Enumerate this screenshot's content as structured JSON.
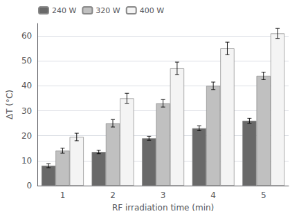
{
  "chart_data": {
    "type": "bar",
    "categories": [
      1,
      2,
      3,
      4,
      5
    ],
    "series": [
      {
        "name": "240 W",
        "color": "#696969",
        "values": [
          8,
          13.5,
          19,
          23,
          26
        ],
        "errors": [
          0.8,
          0.7,
          0.8,
          1.0,
          1.0
        ]
      },
      {
        "name": "320 W",
        "color": "#c0c0c0",
        "values": [
          14,
          25,
          33,
          40,
          44
        ],
        "errors": [
          1.0,
          1.5,
          1.5,
          1.5,
          1.5
        ]
      },
      {
        "name": "400 W",
        "color": "#f4f4f4",
        "values": [
          19.5,
          35,
          47,
          55,
          61
        ],
        "errors": [
          1.5,
          2.0,
          2.5,
          2.5,
          2.0
        ]
      }
    ],
    "xlabel": "RF irradiation time (min)",
    "ylabel": "ΔT (°C)",
    "ylim": [
      0,
      65
    ],
    "yticks": [
      0,
      10,
      20,
      30,
      40,
      50,
      60
    ],
    "grid": true,
    "legend": "upper left"
  }
}
